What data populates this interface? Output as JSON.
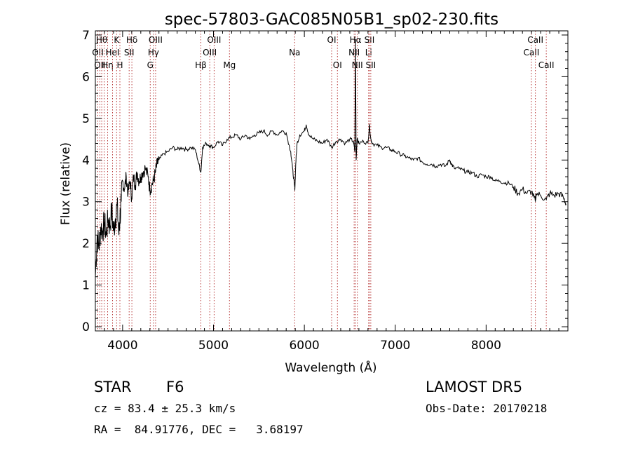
{
  "chart_data": {
    "type": "line",
    "title": "spec-57803-GAC085N05B1_sp02-230.fits",
    "xlabel": "Wavelength (Å)",
    "ylabel": "Flux (relative)",
    "xlim": [
      3700,
      8900
    ],
    "ylim": [
      -0.1,
      7.1
    ],
    "xticks": [
      {
        "value": 4000,
        "label": "4000"
      },
      {
        "value": 5000,
        "label": "5000"
      },
      {
        "value": 6000,
        "label": "6000"
      },
      {
        "value": 7000,
        "label": "7000"
      },
      {
        "value": 8000,
        "label": "8000"
      }
    ],
    "yticks": [
      {
        "value": 0,
        "label": "0"
      },
      {
        "value": 1,
        "label": "1"
      },
      {
        "value": 2,
        "label": "2"
      },
      {
        "value": 3,
        "label": "3"
      },
      {
        "value": 4,
        "label": "4"
      },
      {
        "value": 5,
        "label": "5"
      },
      {
        "value": 6,
        "label": "6"
      },
      {
        "value": 7,
        "label": "7"
      }
    ],
    "grid": false,
    "series": [
      {
        "x": [
          3700,
          3720,
          3740,
          3760,
          3780,
          3800,
          3820,
          3840,
          3860,
          3880,
          3900,
          3920,
          3940,
          3960,
          3970,
          3985,
          4000,
          4020,
          4040,
          4060,
          4080,
          4100,
          4120,
          4140,
          4160,
          4180,
          4200,
          4220,
          4250,
          4280,
          4300,
          4320,
          4340,
          4360,
          4380,
          4400,
          4450,
          4500,
          4550,
          4600,
          4650,
          4700,
          4750,
          4800,
          4840,
          4861,
          4880,
          4920,
          4960,
          5000,
          5050,
          5100,
          5150,
          5200,
          5250,
          5300,
          5350,
          5400,
          5450,
          5500,
          5550,
          5600,
          5650,
          5700,
          5750,
          5800,
          5850,
          5870,
          5890,
          5896,
          5905,
          5920,
          5950,
          6000,
          6020,
          6050,
          6100,
          6150,
          6200,
          6250,
          6300,
          6350,
          6400,
          6450,
          6500,
          6540,
          6555,
          6563,
          6570,
          6580,
          6600,
          6650,
          6700,
          6716,
          6731,
          6750,
          6800,
          6850,
          6900,
          6950,
          7000,
          7050,
          7100,
          7150,
          7200,
          7250,
          7300,
          7350,
          7400,
          7450,
          7500,
          7550,
          7600,
          7620,
          7650,
          7700,
          7750,
          7800,
          7850,
          7900,
          7950,
          8000,
          8050,
          8100,
          8150,
          8200,
          8250,
          8300,
          8350,
          8400,
          8450,
          8500,
          8542,
          8550,
          8600,
          8662,
          8700,
          8750,
          8800,
          8850,
          8880
        ],
        "y": [
          1.2,
          2.2,
          1.9,
          2.4,
          2.3,
          2.5,
          2.2,
          2.6,
          2.4,
          2.8,
          2.3,
          2.6,
          2.9,
          2.2,
          2.6,
          3.0,
          3.5,
          3.3,
          3.6,
          3.2,
          3.5,
          3.1,
          3.6,
          3.4,
          3.7,
          3.5,
          3.6,
          3.7,
          3.8,
          3.6,
          3.3,
          3.4,
          3.5,
          3.7,
          3.9,
          4.0,
          4.15,
          4.2,
          4.3,
          4.25,
          4.3,
          4.25,
          4.3,
          4.25,
          3.9,
          3.7,
          4.3,
          4.4,
          4.35,
          4.3,
          4.45,
          4.35,
          4.5,
          4.55,
          4.6,
          4.5,
          4.6,
          4.5,
          4.6,
          4.65,
          4.7,
          4.6,
          4.7,
          4.6,
          4.7,
          4.65,
          4.2,
          3.8,
          3.4,
          3.3,
          3.9,
          4.4,
          4.6,
          4.7,
          4.85,
          4.6,
          4.5,
          4.45,
          4.4,
          4.5,
          4.3,
          4.45,
          4.5,
          4.4,
          4.5,
          4.45,
          4.2,
          6.9,
          4.0,
          4.5,
          4.4,
          4.45,
          4.4,
          4.85,
          4.5,
          4.4,
          4.35,
          4.3,
          4.3,
          4.25,
          4.2,
          4.15,
          4.1,
          4.05,
          4.0,
          4.05,
          3.95,
          3.9,
          3.9,
          3.85,
          3.9,
          3.85,
          4.0,
          3.9,
          3.8,
          3.8,
          3.75,
          3.7,
          3.7,
          3.6,
          3.65,
          3.6,
          3.6,
          3.5,
          3.5,
          3.45,
          3.45,
          3.35,
          3.2,
          3.3,
          3.2,
          3.25,
          3.0,
          3.2,
          3.15,
          3.05,
          3.2,
          3.15,
          3.2,
          3.1,
          2.95
        ]
      }
    ],
    "lines": [
      {
        "wl": 3727,
        "row": 1,
        "label": "OII"
      },
      {
        "wl": 3750,
        "row": 2,
        "label": "OII"
      },
      {
        "wl": 3770,
        "row": 0,
        "label": "Hθ"
      },
      {
        "wl": 3798,
        "row": 0,
        "label": ""
      },
      {
        "wl": 3835,
        "row": 2,
        "label": "Hη"
      },
      {
        "wl": 3889,
        "row": 1,
        "label": "HeI"
      },
      {
        "wl": 3934,
        "row": 0,
        "label": "K"
      },
      {
        "wl": 3970,
        "row": 2,
        "label": "H"
      },
      {
        "wl": 4072,
        "row": 1,
        "label": "SII"
      },
      {
        "wl": 4102,
        "row": 0,
        "label": "Hδ"
      },
      {
        "wl": 4304,
        "row": 2,
        "label": "G"
      },
      {
        "wl": 4340,
        "row": 1,
        "label": "Hγ"
      },
      {
        "wl": 4363,
        "row": 0,
        "label": "OIII"
      },
      {
        "wl": 4861,
        "row": 2,
        "label": "Hβ"
      },
      {
        "wl": 4959,
        "row": 1,
        "label": "OIII"
      },
      {
        "wl": 5007,
        "row": 0,
        "label": "OIII"
      },
      {
        "wl": 5176,
        "row": 2,
        "label": "Mg"
      },
      {
        "wl": 5893,
        "row": 1,
        "label": "Na"
      },
      {
        "wl": 6300,
        "row": 0,
        "label": "OI"
      },
      {
        "wl": 6364,
        "row": 2,
        "label": "OI"
      },
      {
        "wl": 6548,
        "row": 1,
        "label": "NII"
      },
      {
        "wl": 6563,
        "row": 0,
        "label": "Hα"
      },
      {
        "wl": 6583,
        "row": 2,
        "label": "NII"
      },
      {
        "wl": 6707,
        "row": 1,
        "label": "Li"
      },
      {
        "wl": 6716,
        "row": 0,
        "label": "SII"
      },
      {
        "wl": 6731,
        "row": 2,
        "label": "SII"
      },
      {
        "wl": 8498,
        "row": 1,
        "label": "CaII"
      },
      {
        "wl": 8542,
        "row": 0,
        "label": "CaII"
      },
      {
        "wl": 8662,
        "row": 2,
        "label": "CaII"
      }
    ]
  },
  "info": {
    "class_label": "STAR",
    "subclass": "F6",
    "survey": "LAMOST DR5",
    "cz": "cz = 83.4 ± 25.3 km/s",
    "obs_date": "Obs-Date: 20170218",
    "coords": "RA =  84.91776, DEC =   3.68197"
  }
}
